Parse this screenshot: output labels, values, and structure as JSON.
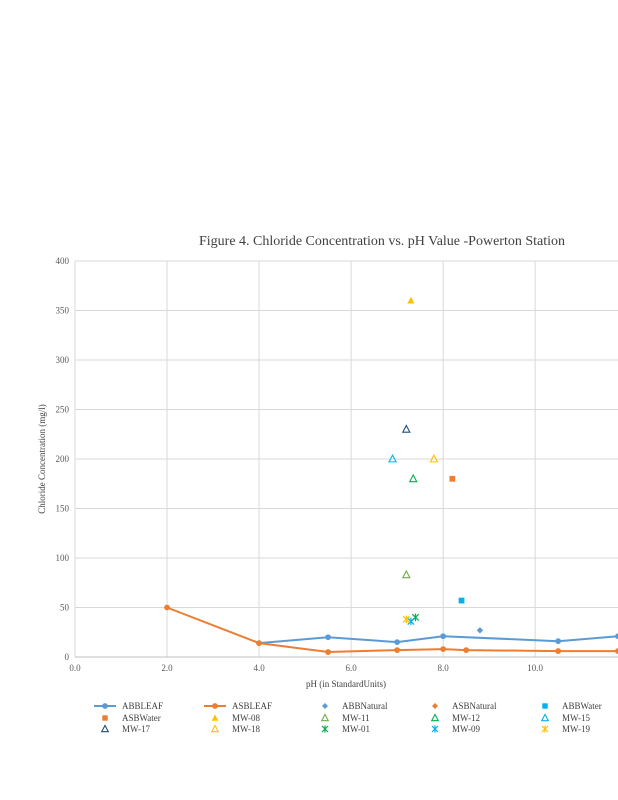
{
  "chart_data": {
    "type": "scatter",
    "title": "Figure 4. Chloride Concentration  vs. pH Value  -Powerton  Station",
    "xlabel": "pH (in StandardUnits)",
    "ylabel": "Chloride Concentration  (mg/l)",
    "xlim": [
      0,
      11.8
    ],
    "ylim": [
      0,
      400
    ],
    "x_ticks": [
      "0.0",
      "2.0",
      "4.0",
      "6.0",
      "8.0",
      "10.0"
    ],
    "y_ticks": [
      "0",
      "50",
      "100",
      "150",
      "200",
      "250",
      "300",
      "350",
      "400"
    ],
    "grid": true,
    "legend_position": "bottom",
    "series": [
      {
        "name": "ABBLEAF",
        "mode": "line-marker",
        "marker": "circle",
        "color": "#5B9BD5",
        "points": [
          [
            4.0,
            14
          ],
          [
            5.5,
            20
          ],
          [
            7.0,
            15
          ],
          [
            8.0,
            21
          ],
          [
            10.5,
            16
          ],
          [
            11.8,
            21
          ]
        ]
      },
      {
        "name": "ASBLEAF",
        "mode": "line-marker",
        "marker": "circle",
        "color": "#ED7D31",
        "points": [
          [
            2.0,
            50
          ],
          [
            4.0,
            14
          ],
          [
            5.5,
            5
          ],
          [
            7.0,
            7
          ],
          [
            8.0,
            8
          ],
          [
            8.5,
            7
          ],
          [
            10.5,
            6
          ],
          [
            11.8,
            6
          ]
        ]
      },
      {
        "name": "ABBNatural",
        "mode": "marker",
        "marker": "diamond",
        "color": "#5B9BD5",
        "points": [
          [
            8.8,
            27
          ]
        ]
      },
      {
        "name": "ASBNatural",
        "mode": "marker",
        "marker": "diamond",
        "color": "#ED7D31",
        "points": []
      },
      {
        "name": "ABBWater",
        "mode": "marker",
        "marker": "square",
        "color": "#00B0F0",
        "points": [
          [
            8.4,
            57
          ]
        ]
      },
      {
        "name": "ASBWater",
        "mode": "marker",
        "marker": "square",
        "color": "#ED7D31",
        "points": [
          [
            8.2,
            180
          ]
        ]
      },
      {
        "name": "MW-08",
        "mode": "marker",
        "marker": "triangle-filled",
        "color": "#FFC000",
        "points": [
          [
            7.3,
            360
          ]
        ]
      },
      {
        "name": "MW-11",
        "mode": "marker",
        "marker": "triangle-open",
        "color": "#70AD47",
        "points": [
          [
            7.2,
            83
          ]
        ]
      },
      {
        "name": "MW-12",
        "mode": "marker",
        "marker": "triangle-open",
        "color": "#00B050",
        "points": [
          [
            7.35,
            180
          ]
        ]
      },
      {
        "name": "MW-15",
        "mode": "marker",
        "marker": "triangle-open",
        "color": "#00B0F0",
        "points": [
          [
            6.9,
            200
          ]
        ]
      },
      {
        "name": "MW-17",
        "mode": "marker",
        "marker": "triangle-open",
        "color": "#1F4E79",
        "points": [
          [
            7.2,
            230
          ]
        ]
      },
      {
        "name": "MW-18",
        "mode": "marker",
        "marker": "triangle-open",
        "color": "#FFC000",
        "points": [
          [
            7.8,
            200
          ]
        ]
      },
      {
        "name": "MW-01",
        "mode": "marker",
        "marker": "asterisk",
        "color": "#00B050",
        "points": [
          [
            7.4,
            40
          ]
        ]
      },
      {
        "name": "MW-09",
        "mode": "marker",
        "marker": "asterisk",
        "color": "#00B0F0",
        "points": [
          [
            7.3,
            36
          ]
        ]
      },
      {
        "name": "MW-19",
        "mode": "marker",
        "marker": "asterisk",
        "color": "#FFC000",
        "points": [
          [
            7.2,
            38
          ]
        ]
      }
    ]
  }
}
